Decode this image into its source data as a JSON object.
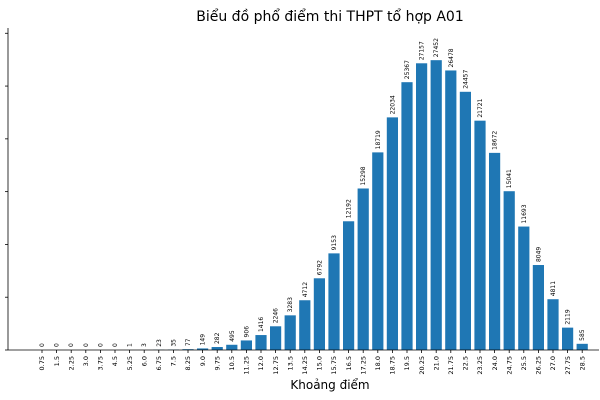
{
  "chart_data": {
    "type": "bar",
    "title": "Biểu đồ phổ điểm thi THPT tổ hợp A01",
    "xlabel": "Khoảng điểm",
    "ylabel": "",
    "ylim": [
      0,
      30500
    ],
    "grid": false,
    "categories": [
      "0.75",
      "1.5",
      "2.25",
      "3.0",
      "3.75",
      "4.5",
      "5.25",
      "6.0",
      "6.75",
      "7.5",
      "8.25",
      "9.0",
      "9.75",
      "10.5",
      "11.25",
      "12.0",
      "12.75",
      "13.5",
      "14.25",
      "15.0",
      "15.75",
      "16.5",
      "17.25",
      "18.0",
      "18.75",
      "19.5",
      "20.25",
      "21.0",
      "21.75",
      "22.5",
      "23.25",
      "24.0",
      "24.75",
      "25.5",
      "26.25",
      "27.0",
      "27.75",
      "28.5"
    ],
    "values": [
      0,
      0,
      0,
      0,
      0,
      0,
      1,
      3,
      23,
      35,
      77,
      149,
      282,
      495,
      906,
      1416,
      2246,
      3283,
      4712,
      6792,
      9153,
      12192,
      15298,
      18719,
      22034,
      25367,
      27157,
      27452,
      26478,
      24457,
      21721,
      18672,
      15041,
      11693,
      8049,
      4811,
      2119,
      585
    ],
    "value_labels": [
      "0",
      "0",
      "0",
      "0",
      "0",
      "0",
      "1",
      "3",
      "23",
      "35",
      "77",
      "149",
      "282",
      "495",
      "906",
      "1416",
      "2246",
      "3283",
      "4712",
      "6792",
      "9153",
      "12192",
      "15298",
      "18719",
      "22034",
      "25367",
      "27157",
      "27452",
      "26478",
      "24457",
      "21721",
      "18672",
      "15041",
      "11693",
      "8049",
      "4811",
      "2119",
      "585"
    ]
  }
}
